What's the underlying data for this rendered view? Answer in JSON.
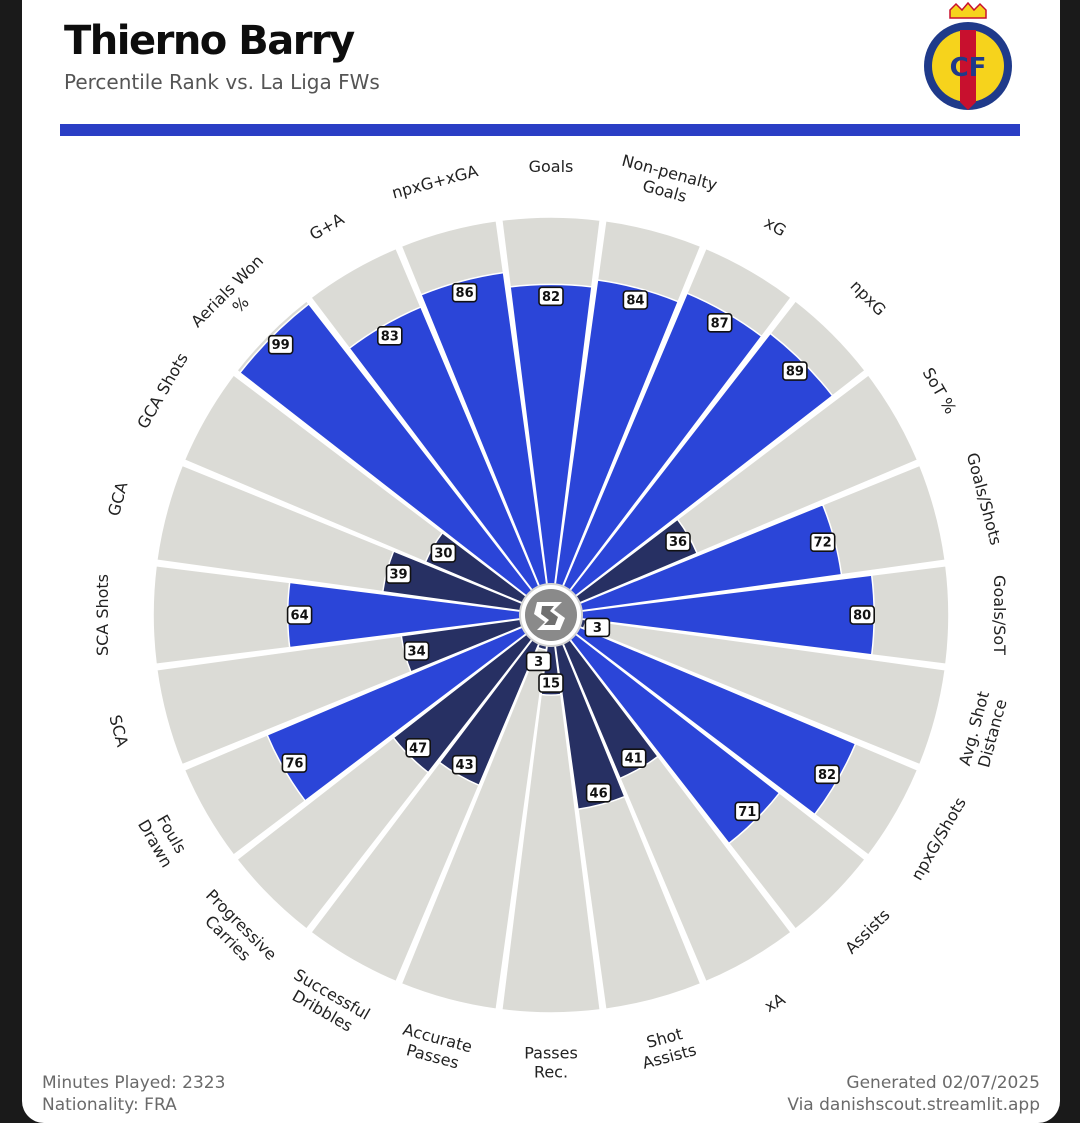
{
  "header": {
    "title": "Thierno Barry",
    "subtitle": "Percentile Rank vs. La Liga FWs",
    "crest_text": "CF",
    "colors": {
      "accent_bar": "#2a3ec5",
      "crest_yellow": "#f6d31c",
      "crest_navy": "#1f3a8a",
      "crest_red": "#c8102e"
    }
  },
  "chart_data": {
    "type": "radar-bar",
    "range": [
      0,
      100
    ],
    "center_logo": "danishscout-logo-icon",
    "colors": {
      "background_slice": "#dbdbd6",
      "high": "#2b45d8",
      "low": "#273063"
    },
    "categories": [
      {
        "label": "Goals",
        "value": 82
      },
      {
        "label": "Non-penalty Goals",
        "value": 84
      },
      {
        "label": "xG",
        "value": 87
      },
      {
        "label": "npxG",
        "value": 89
      },
      {
        "label": "SoT %",
        "value": 36
      },
      {
        "label": "Goals/Shots",
        "value": 72
      },
      {
        "label": "Goals/SoT",
        "value": 80
      },
      {
        "label": "Avg. Shot Distance",
        "value": 3
      },
      {
        "label": "npxG/Shots",
        "value": 82
      },
      {
        "label": "Assists",
        "value": 71
      },
      {
        "label": "xA",
        "value": 41
      },
      {
        "label": "Shot Assists",
        "value": 46
      },
      {
        "label": "Passes Rec.",
        "value": 15
      },
      {
        "label": "Accurate Passes",
        "value": 3
      },
      {
        "label": "Successful Dribbles",
        "value": 43
      },
      {
        "label": "Progressive Carries",
        "value": 47
      },
      {
        "label": "Fouls Drawn",
        "value": 76
      },
      {
        "label": "SCA",
        "value": 34
      },
      {
        "label": "SCA Shots",
        "value": 64
      },
      {
        "label": "GCA",
        "value": 39
      },
      {
        "label": "GCA Shots",
        "value": 30
      },
      {
        "label": "Aerials Won %",
        "value": 99
      },
      {
        "label": "G+A",
        "value": 83
      },
      {
        "label": "npxG+xGA",
        "value": 86
      }
    ]
  },
  "footer": {
    "minutes": "Minutes Played: 2323",
    "nationality": "Nationality: FRA",
    "generated": "Generated 02/07/2025",
    "via": "Via danishscout.streamlit.app"
  }
}
